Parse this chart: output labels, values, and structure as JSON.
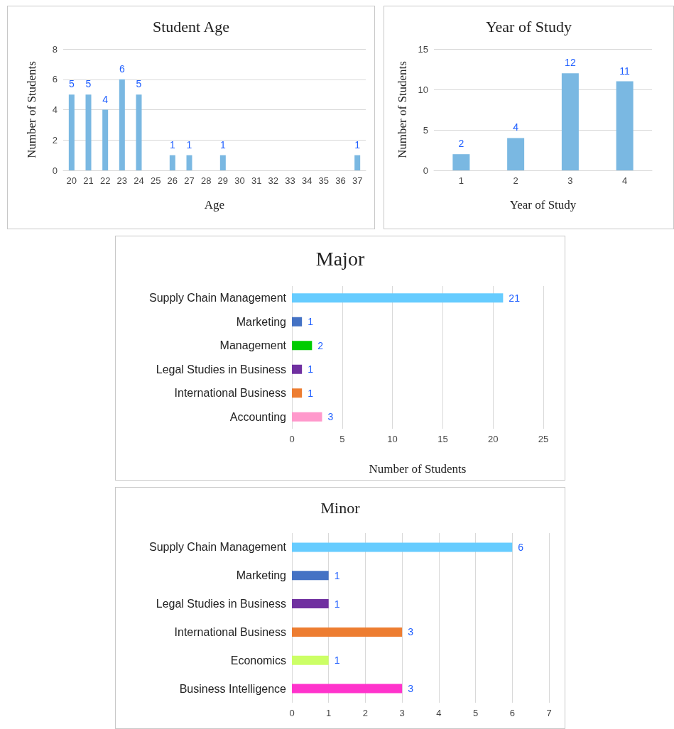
{
  "chart_data": [
    {
      "type": "bar",
      "title": "Student Age",
      "xlabel": "Age",
      "ylabel": "Number of Students",
      "categories": [
        "20",
        "21",
        "22",
        "23",
        "24",
        "25",
        "26",
        "27",
        "28",
        "29",
        "30",
        "31",
        "32",
        "33",
        "34",
        "35",
        "36",
        "37"
      ],
      "values": [
        5,
        5,
        4,
        6,
        5,
        0,
        1,
        1,
        0,
        1,
        0,
        0,
        0,
        0,
        0,
        0,
        0,
        1
      ],
      "value_labels": [
        "5",
        "5",
        "4",
        "6",
        "5",
        null,
        "1",
        "1",
        null,
        "1",
        null,
        null,
        null,
        null,
        null,
        null,
        null,
        "1"
      ],
      "color": "#7ab8e2",
      "ylim": [
        0,
        8
      ],
      "yticks": [
        0,
        2,
        4,
        6,
        8
      ],
      "grid": "y"
    },
    {
      "type": "bar",
      "title": "Year of Study",
      "xlabel": "Year of Study",
      "ylabel": "Number of Students",
      "categories": [
        "1",
        "2",
        "3",
        "4"
      ],
      "values": [
        2,
        4,
        12,
        11
      ],
      "color": "#7ab8e2",
      "ylim": [
        0,
        15
      ],
      "yticks": [
        0,
        5,
        10,
        15
      ],
      "grid": "y",
      "data_labels": true
    },
    {
      "type": "bar",
      "orientation": "horizontal",
      "title": "Major",
      "xlabel": "Number of Students",
      "categories": [
        "Supply Chain Management",
        "Marketing",
        "Management",
        "Legal Studies in Business",
        "International Business",
        "Accounting"
      ],
      "values": [
        21,
        1,
        2,
        1,
        1,
        3
      ],
      "colors": [
        "#66ccff",
        "#4472c4",
        "#00cc00",
        "#7030a0",
        "#ed7d31",
        "#ff99cc"
      ],
      "xlim": [
        0,
        25
      ],
      "xticks": [
        0,
        5,
        10,
        15,
        20,
        25
      ],
      "grid": "x",
      "data_labels": true
    },
    {
      "type": "bar",
      "orientation": "horizontal",
      "title": "Minor",
      "categories": [
        "Supply Chain Management",
        "Marketing",
        "Legal Studies in Business",
        "International Business",
        "Economics",
        "Business Intelligence"
      ],
      "values": [
        6,
        1,
        1,
        3,
        1,
        3
      ],
      "colors": [
        "#66ccff",
        "#4472c4",
        "#7030a0",
        "#ed7d31",
        "#ccff66",
        "#ff33cc"
      ],
      "xlim": [
        0,
        7
      ],
      "xticks": [
        0,
        1,
        2,
        3,
        4,
        5,
        6,
        7
      ],
      "grid": "x",
      "data_labels": true
    }
  ]
}
